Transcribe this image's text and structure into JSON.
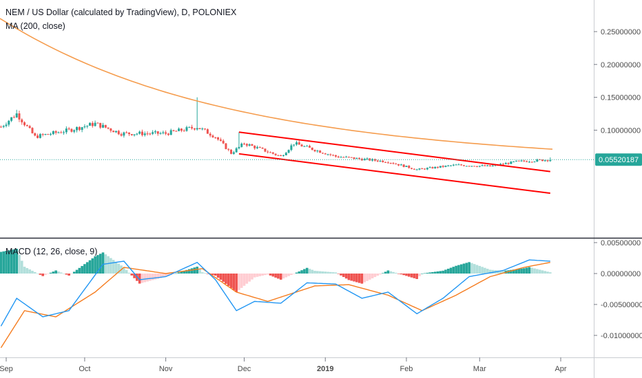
{
  "header": {
    "title": "NEM / US Dollar (calculated by TradingView), D, POLONIEX",
    "ma_label": "MA (200, close)",
    "macd_label": "MACD (12, 26, close, 9)"
  },
  "colors": {
    "up": "#26a69a",
    "down": "#ef5350",
    "ma": "#f59c4d",
    "macd_line": "#2196f3",
    "signal_line": "#f57c1f",
    "hist_up_strong": "#26a69a",
    "hist_up_weak": "#b2dfdb",
    "hist_down_strong": "#ef5350",
    "hist_down_weak": "#ffcdd2",
    "channel": "#ff0000",
    "last_price": "#26a69a"
  },
  "chart_data": [
    {
      "type": "candlestick",
      "title": "NEM / US Dollar (calculated by TradingView), D, POLONIEX",
      "x_ticks": [
        "Sep",
        "Oct",
        "Nov",
        "Dec",
        "2019",
        "Feb",
        "Mar",
        "Apr"
      ],
      "y_ticks": [
        "0.25000000",
        "0.20000000",
        "0.15000000",
        "0.10000000"
      ],
      "last_price": 0.05520187,
      "last_price_label": "0.05520187",
      "overlay_series": [
        {
          "name": "MA (200, close)",
          "start": 0.27,
          "end": 0.071
        }
      ],
      "price_anchors": [
        {
          "date": "2018-08-30",
          "value": 0.105
        },
        {
          "date": "2018-09-05",
          "value": 0.125
        },
        {
          "date": "2018-09-12",
          "value": 0.09
        },
        {
          "date": "2018-09-25",
          "value": 0.1
        },
        {
          "date": "2018-10-05",
          "value": 0.11
        },
        {
          "date": "2018-10-15",
          "value": 0.095
        },
        {
          "date": "2018-11-01",
          "value": 0.095
        },
        {
          "date": "2018-11-13",
          "value": 0.105
        },
        {
          "date": "2018-11-20",
          "value": 0.09
        },
        {
          "date": "2018-11-26",
          "value": 0.065
        },
        {
          "date": "2018-12-01",
          "value": 0.08
        },
        {
          "date": "2018-12-15",
          "value": 0.06
        },
        {
          "date": "2018-12-20",
          "value": 0.08
        },
        {
          "date": "2019-01-05",
          "value": 0.06
        },
        {
          "date": "2019-01-25",
          "value": 0.052
        },
        {
          "date": "2019-02-05",
          "value": 0.04
        },
        {
          "date": "2019-02-20",
          "value": 0.047
        },
        {
          "date": "2019-03-05",
          "value": 0.045
        },
        {
          "date": "2019-03-15",
          "value": 0.052
        },
        {
          "date": "2019-03-28",
          "value": 0.0552
        }
      ],
      "channel_lines": [
        {
          "start_date": "2018-11-29",
          "start_value": 0.097,
          "end_date": "2019-03-28",
          "end_value": 0.037
        },
        {
          "start_date": "2018-11-29",
          "start_value": 0.064,
          "end_date": "2019-03-28",
          "end_value": 0.004
        }
      ]
    },
    {
      "type": "line",
      "title": "MACD (12, 26, close, 9)",
      "y_ticks": [
        "0.00500000",
        "0.00000000",
        "-0.00500000",
        "-0.01000000"
      ],
      "series": [
        {
          "name": "MACD",
          "points": [
            {
              "date": "2018-08-30",
              "value": -0.0085
            },
            {
              "date": "2018-09-05",
              "value": -0.004
            },
            {
              "date": "2018-09-15",
              "value": -0.007
            },
            {
              "date": "2018-09-25",
              "value": -0.006
            },
            {
              "date": "2018-10-08",
              "value": 0.0015
            },
            {
              "date": "2018-10-16",
              "value": 0.002
            },
            {
              "date": "2018-10-22",
              "value": -0.001
            },
            {
              "date": "2018-11-01",
              "value": -0.0005
            },
            {
              "date": "2018-11-13",
              "value": 0.0018
            },
            {
              "date": "2018-11-20",
              "value": -0.001
            },
            {
              "date": "2018-11-28",
              "value": -0.006
            },
            {
              "date": "2018-12-05",
              "value": -0.0045
            },
            {
              "date": "2018-12-15",
              "value": -0.0048
            },
            {
              "date": "2018-12-25",
              "value": -0.0015
            },
            {
              "date": "2019-01-05",
              "value": -0.0017
            },
            {
              "date": "2019-01-15",
              "value": -0.004
            },
            {
              "date": "2019-01-25",
              "value": -0.003
            },
            {
              "date": "2019-02-05",
              "value": -0.0065
            },
            {
              "date": "2019-02-15",
              "value": -0.004
            },
            {
              "date": "2019-02-25",
              "value": -0.0005
            },
            {
              "date": "2019-03-10",
              "value": 0.0005
            },
            {
              "date": "2019-03-20",
              "value": 0.0022
            },
            {
              "date": "2019-03-28",
              "value": 0.002
            }
          ]
        },
        {
          "name": "Signal",
          "points": [
            {
              "date": "2018-08-30",
              "value": -0.012
            },
            {
              "date": "2018-09-08",
              "value": -0.006
            },
            {
              "date": "2018-09-20",
              "value": -0.007
            },
            {
              "date": "2018-10-05",
              "value": -0.003
            },
            {
              "date": "2018-10-16",
              "value": 0.001
            },
            {
              "date": "2018-11-01",
              "value": 0.0
            },
            {
              "date": "2018-11-15",
              "value": 0.0008
            },
            {
              "date": "2018-11-28",
              "value": -0.003
            },
            {
              "date": "2018-12-10",
              "value": -0.0045
            },
            {
              "date": "2018-12-28",
              "value": -0.002
            },
            {
              "date": "2019-01-10",
              "value": -0.0018
            },
            {
              "date": "2019-01-25",
              "value": -0.0035
            },
            {
              "date": "2019-02-07",
              "value": -0.006
            },
            {
              "date": "2019-02-20",
              "value": -0.0035
            },
            {
              "date": "2019-03-05",
              "value": -0.0005
            },
            {
              "date": "2019-03-18",
              "value": 0.001
            },
            {
              "date": "2019-03-28",
              "value": 0.0018
            }
          ]
        }
      ]
    }
  ]
}
